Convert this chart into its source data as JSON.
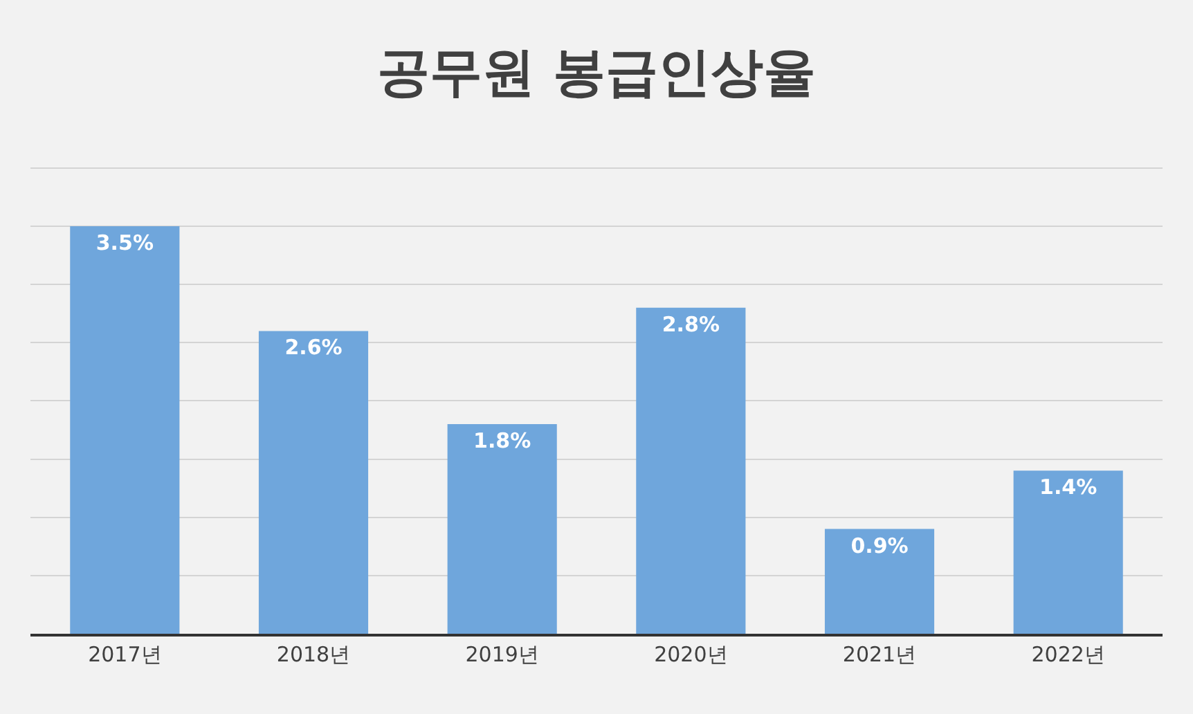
{
  "chart_data": {
    "type": "bar",
    "title": "공무원 봉급인상율",
    "categories": [
      "2017년",
      "2018년",
      "2019년",
      "2020년",
      "2021년",
      "2022년"
    ],
    "values": [
      3.5,
      2.6,
      1.8,
      2.8,
      0.9,
      1.4
    ],
    "value_labels": [
      "3.5%",
      "2.6%",
      "1.8%",
      "2.8%",
      "0.9%",
      "1.4%"
    ],
    "color": "#6fa6dc",
    "yticks": [
      {
        "value": 0,
        "label": null
      },
      {
        "value": 0.5,
        "label": null
      },
      {
        "value": 1,
        "label": null
      },
      {
        "value": 1.5,
        "label": null
      },
      {
        "value": 2,
        "label": null
      },
      {
        "value": 2.5,
        "label": null
      },
      {
        "value": 3,
        "label": null
      },
      {
        "value": 3.5,
        "label": null
      },
      {
        "value": 4,
        "label": null
      }
    ],
    "grid": "y",
    "legend": false
  }
}
